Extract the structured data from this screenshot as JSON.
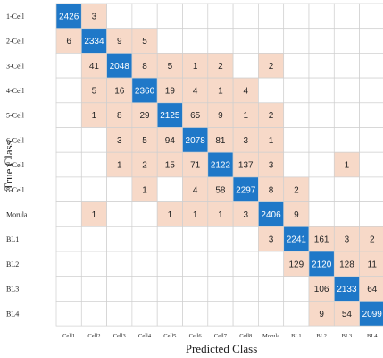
{
  "chart_data": {
    "type": "heatmap",
    "title": "",
    "xlabel": "Predicted Class",
    "ylabel": "True Class",
    "row_labels": [
      "1-Cell",
      "2-Cell",
      "3-Cell",
      "4-Cell",
      "5-Cell",
      "6-Cell",
      "7-Cell",
      "8-Cell",
      "Morula",
      "BL1",
      "BL2",
      "BL3",
      "BL4"
    ],
    "col_labels": [
      "Cell1",
      "Cell2",
      "Cell3",
      "Cell4",
      "Cell5",
      "Cell6",
      "Cell7",
      "Cell8",
      "Morula",
      "BL1",
      "BL2",
      "BL3",
      "BL4"
    ],
    "matrix": [
      [
        2426,
        3,
        null,
        null,
        null,
        null,
        null,
        null,
        null,
        null,
        null,
        null,
        null
      ],
      [
        6,
        2334,
        9,
        5,
        null,
        null,
        null,
        null,
        null,
        null,
        null,
        null,
        null
      ],
      [
        null,
        41,
        2048,
        8,
        5,
        1,
        2,
        null,
        2,
        null,
        null,
        null,
        null
      ],
      [
        null,
        5,
        16,
        2360,
        19,
        4,
        1,
        4,
        null,
        null,
        null,
        null,
        null
      ],
      [
        null,
        1,
        8,
        29,
        2125,
        65,
        9,
        1,
        2,
        null,
        null,
        null,
        null
      ],
      [
        null,
        null,
        3,
        5,
        94,
        2078,
        81,
        3,
        1,
        null,
        null,
        null,
        null
      ],
      [
        null,
        null,
        1,
        2,
        15,
        71,
        2122,
        137,
        3,
        null,
        null,
        1,
        null
      ],
      [
        null,
        null,
        null,
        1,
        null,
        4,
        58,
        2297,
        8,
        2,
        null,
        null,
        null
      ],
      [
        null,
        1,
        null,
        null,
        1,
        1,
        1,
        3,
        2406,
        9,
        null,
        null,
        null
      ],
      [
        null,
        null,
        null,
        null,
        null,
        null,
        null,
        null,
        3,
        2241,
        161,
        3,
        2
      ],
      [
        null,
        null,
        null,
        null,
        null,
        null,
        null,
        null,
        null,
        129,
        2120,
        128,
        11
      ],
      [
        null,
        null,
        null,
        null,
        null,
        null,
        null,
        null,
        null,
        null,
        106,
        2133,
        64
      ],
      [
        null,
        null,
        null,
        null,
        null,
        null,
        null,
        null,
        null,
        null,
        9,
        54,
        2099
      ]
    ],
    "colors": {
      "diagonal": "#1f78c8",
      "off_diagonal": "#f7d9c8",
      "empty": "#ffffff",
      "grid": "#cfcfcf",
      "diagonal_text": "#ffffff",
      "off_text": "#222222"
    }
  }
}
